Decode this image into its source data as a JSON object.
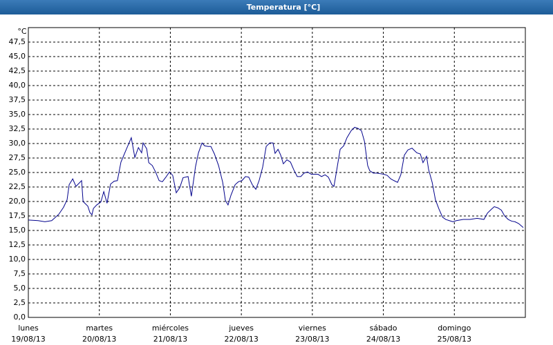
{
  "chart_data": {
    "type": "line",
    "title": "Temperatura [°C]",
    "y_unit": "°C",
    "color": "#00008b",
    "grid": true,
    "xlim": [
      0,
      168
    ],
    "ylim": [
      0,
      50
    ],
    "xticks": [
      {
        "value": 0,
        "label": "lunes",
        "date": "19/08/13"
      },
      {
        "value": 24,
        "label": "martes",
        "date": "20/08/13"
      },
      {
        "value": 48,
        "label": "miércoles",
        "date": "21/08/13"
      },
      {
        "value": 72,
        "label": "jueves",
        "date": "22/08/13"
      },
      {
        "value": 96,
        "label": "viernes",
        "date": "23/08/13"
      },
      {
        "value": 120,
        "label": "sábado",
        "date": "24/08/13"
      },
      {
        "value": 144,
        "label": "domingo",
        "date": "25/08/13"
      }
    ],
    "yticks": [
      {
        "value": 0,
        "label": "0,0"
      },
      {
        "value": 2.5,
        "label": "2,5"
      },
      {
        "value": 5,
        "label": "5,0"
      },
      {
        "value": 7.5,
        "label": "7,5"
      },
      {
        "value": 10,
        "label": "10,0"
      },
      {
        "value": 12.5,
        "label": "12,5"
      },
      {
        "value": 15,
        "label": "15,0"
      },
      {
        "value": 17.5,
        "label": "17,5"
      },
      {
        "value": 20,
        "label": "20,0"
      },
      {
        "value": 22.5,
        "label": "22,5"
      },
      {
        "value": 25,
        "label": "25,0"
      },
      {
        "value": 27.5,
        "label": "27,5"
      },
      {
        "value": 30,
        "label": "30,0"
      },
      {
        "value": 32.5,
        "label": "32,5"
      },
      {
        "value": 35,
        "label": "35,0"
      },
      {
        "value": 37.5,
        "label": "37,5"
      },
      {
        "value": 40,
        "label": "40,0"
      },
      {
        "value": 42.5,
        "label": "42,5"
      },
      {
        "value": 45,
        "label": "45,0"
      },
      {
        "value": 47.5,
        "label": "47,5"
      }
    ],
    "x": [
      0,
      3.3,
      5.6,
      7.9,
      10.3,
      11.9,
      13.1,
      13.8,
      15.0,
      16.1,
      18.0,
      18.5,
      20.1,
      20.8,
      21.5,
      22.0,
      23.1,
      24.5,
      25.5,
      26.6,
      27.8,
      29.0,
      30.1,
      31.3,
      33.2,
      34.8,
      36.0,
      37.2,
      38.3,
      38.8,
      40.0,
      40.7,
      41.9,
      43.0,
      44.2,
      45.3,
      46.5,
      47.7,
      48.8,
      50.0,
      51.2,
      52.3,
      54.0,
      55.1,
      56.5,
      57.5,
      58.7,
      59.6,
      60.8,
      61.7,
      62.9,
      64.3,
      65.7,
      66.6,
      67.5,
      68.5,
      69.9,
      71.0,
      72.2,
      73.4,
      74.5,
      75.7,
      76.9,
      78.0,
      79.2,
      80.4,
      81.6,
      82.7,
      83.4,
      84.4,
      85.3,
      86.2,
      87.4,
      88.6,
      89.7,
      90.9,
      92.1,
      93.2,
      94.4,
      95.6,
      96.7,
      97.9,
      99.1,
      100.3,
      101.4,
      102.6,
      103.3,
      104.2,
      105.4,
      106.6,
      107.7,
      109.1,
      110.3,
      111.5,
      112.6,
      113.6,
      114.7,
      115.4,
      116.6,
      117.8,
      118.9,
      120.1,
      121.3,
      122.5,
      123.6,
      124.8,
      125.9,
      127.1,
      128.3,
      129.7,
      131.3,
      132.5,
      133.4,
      134.6,
      135.3,
      136.5,
      137.6,
      138.8,
      140.0,
      141.1,
      142.3,
      143.5,
      144.7,
      147.0,
      149.3,
      151.7,
      154.0,
      155.2,
      156.4,
      157.5,
      158.7,
      159.9,
      161.0,
      162.2,
      163.4,
      164.5,
      165.7,
      167.3
    ],
    "values": [
      16.8,
      16.7,
      16.5,
      16.7,
      17.8,
      19.0,
      20.3,
      22.9,
      23.9,
      22.6,
      23.6,
      20.0,
      19.2,
      18.1,
      17.7,
      18.8,
      19.4,
      19.9,
      21.7,
      19.7,
      23.0,
      23.5,
      23.6,
      26.8,
      29.1,
      31.0,
      27.6,
      29.3,
      28.4,
      30.1,
      29.1,
      26.7,
      26.2,
      25.1,
      23.6,
      23.4,
      24.2,
      25.1,
      24.5,
      21.5,
      22.4,
      24.1,
      24.3,
      20.9,
      26.0,
      28.4,
      30.1,
      29.6,
      29.5,
      29.5,
      28.2,
      26.2,
      23.3,
      20.2,
      19.4,
      21.1,
      22.9,
      23.4,
      23.6,
      24.3,
      24.2,
      22.9,
      22.1,
      23.6,
      25.9,
      29.5,
      30.1,
      30.1,
      28.3,
      29.0,
      28.0,
      26.5,
      27.2,
      26.8,
      25.5,
      24.3,
      24.3,
      24.9,
      25.1,
      24.7,
      24.7,
      24.7,
      24.3,
      24.6,
      24.2,
      22.9,
      22.6,
      25.3,
      29.0,
      29.6,
      31.0,
      32.2,
      32.8,
      32.6,
      32.2,
      30.4,
      26.2,
      25.3,
      24.9,
      24.9,
      24.8,
      24.7,
      24.5,
      23.9,
      23.6,
      23.3,
      24.6,
      28.0,
      28.9,
      29.2,
      28.4,
      28.2,
      26.7,
      27.8,
      25.5,
      23.3,
      20.3,
      18.7,
      17.3,
      16.9,
      16.7,
      16.5,
      16.7,
      16.9,
      16.9,
      17.1,
      16.9,
      18.0,
      18.6,
      19.1,
      18.9,
      18.5,
      17.5,
      16.9,
      16.6,
      16.5,
      16.2,
      15.5
    ]
  }
}
